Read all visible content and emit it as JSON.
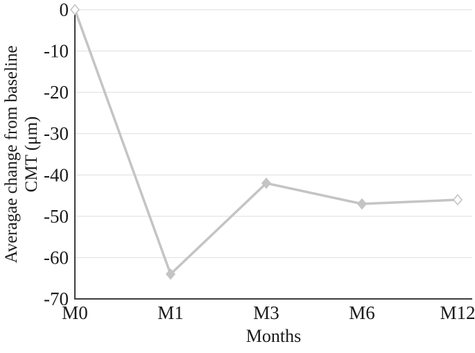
{
  "chart_data": {
    "type": "line",
    "title": "",
    "categories": [
      "M0",
      "M1",
      "M3",
      "M6",
      "M12"
    ],
    "values": [
      0,
      -64,
      -42,
      -47,
      -46
    ],
    "series": [
      {
        "name": "Average change from baseline CMT",
        "values": [
          0,
          -64,
          -42,
          -47,
          -46
        ]
      }
    ],
    "xlabel": "Months",
    "ylabel": "Averagae change from baseline CMT (μm)",
    "ylabel_lines": [
      "Averagae change from baseline",
      "CMT (μm)"
    ],
    "ylim": [
      -70,
      0
    ],
    "yticks": [
      0,
      -10,
      -20,
      -30,
      -40,
      -50,
      -60,
      -70
    ],
    "ytick_labels": [
      "0",
      "-10",
      "-20",
      "-30",
      "-40",
      "-50",
      "-60",
      "-70"
    ],
    "grid": "horizontal",
    "legend": "none",
    "marker": "diamond",
    "marker_fill": [
      "open",
      "filled",
      "filled",
      "filled",
      "open"
    ],
    "colors": {
      "line": "#c4c4c4",
      "marker": "#c4c4c4",
      "marker_open_fill": "#ffffff",
      "grid": "#dedede",
      "axis": "#3d3d3d",
      "text": "#1a1a1a",
      "background": "#ffffff"
    }
  }
}
